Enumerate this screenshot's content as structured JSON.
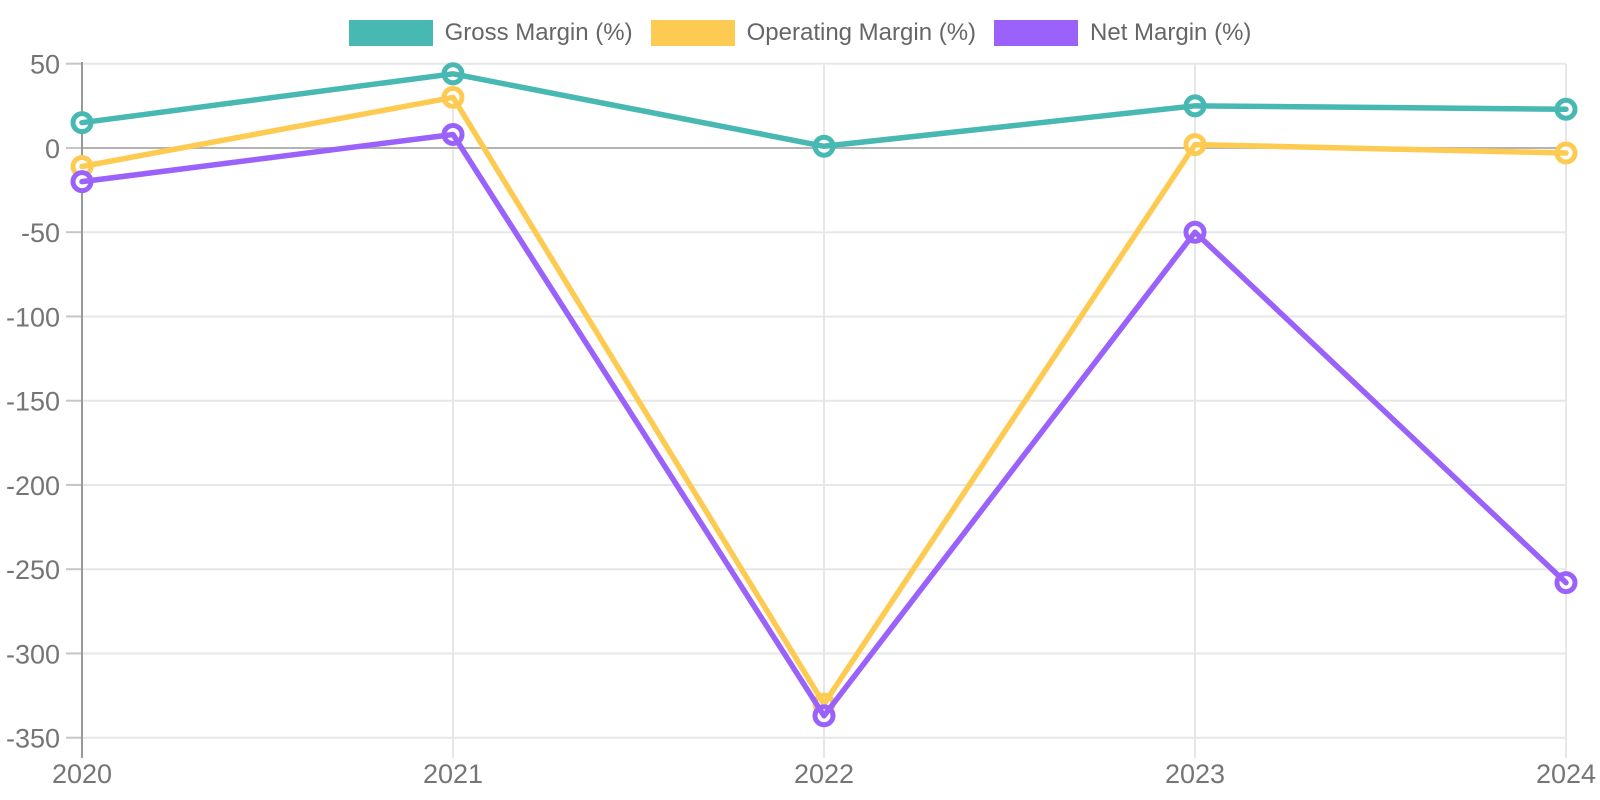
{
  "chart_data": {
    "type": "line",
    "title": "",
    "x_categories": [
      "2020",
      "2021",
      "2022",
      "2023",
      "2024"
    ],
    "series": [
      {
        "name": "Gross Margin (%)",
        "color": "#47b8b2",
        "values": [
          15,
          44,
          1,
          25,
          23
        ]
      },
      {
        "name": "Operating Margin (%)",
        "color": "#fecb52",
        "values": [
          -11,
          30,
          -330,
          2,
          -3
        ]
      },
      {
        "name": "Net Margin (%)",
        "color": "#9a62fa",
        "values": [
          -20,
          8,
          -337,
          -50,
          -258
        ]
      }
    ],
    "y_ticks": [
      50,
      0,
      -50,
      -100,
      -150,
      -200,
      -250,
      -300,
      -350
    ],
    "ylim": [
      -350,
      50
    ],
    "grid": true,
    "legend_position": "top",
    "marker": "open-circle"
  },
  "theme": {
    "background": "#ffffff",
    "grid_line": "#e7e7e7",
    "zero_line": "#b3b3b3",
    "axis_line": "#999999",
    "tick_mark": "#c6c6c6",
    "tick_label": "#757575",
    "legend_text": "#666666",
    "marker_fill": "#ffffff"
  }
}
